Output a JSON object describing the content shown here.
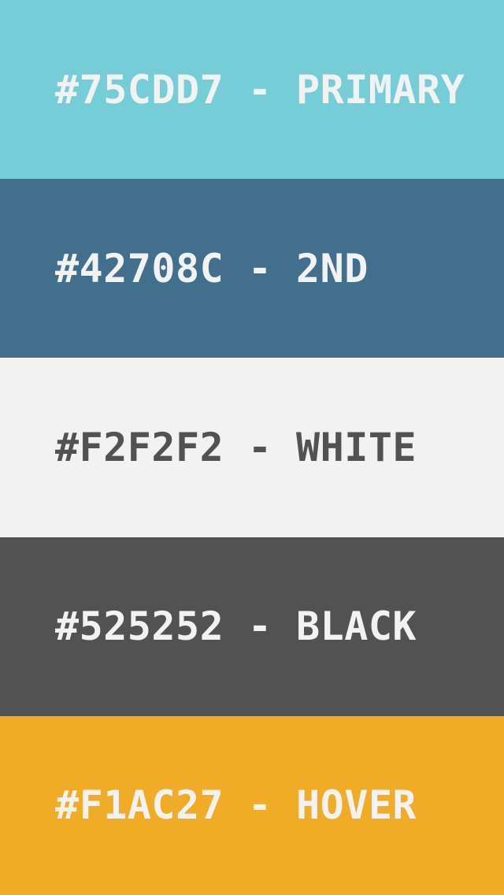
{
  "palette": {
    "swatches": [
      {
        "label": "#75CDD7 - PRIMARY",
        "background": "#75CDD7",
        "text_color": "#F2F2F2"
      },
      {
        "label": "#42708C - 2ND",
        "background": "#42708C",
        "text_color": "#F2F2F2"
      },
      {
        "label": "#F2F2F2 - WHITE",
        "background": "#F2F2F2",
        "text_color": "#525252"
      },
      {
        "label": "#525252 - BLACK",
        "background": "#525252",
        "text_color": "#F2F2F2"
      },
      {
        "label": "#F1AC27 - HOVER",
        "background": "#F1AC27",
        "text_color": "#F2F2F2"
      }
    ]
  }
}
